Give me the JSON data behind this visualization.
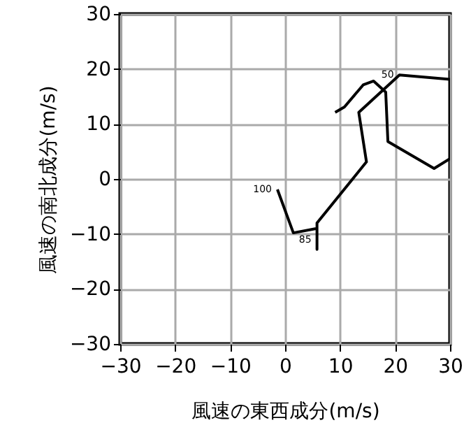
{
  "chart_data": {
    "type": "line",
    "xlabel": "風速の東西成分(m/s)",
    "ylabel": "風速の南北成分(m/s)",
    "series": [
      {
        "color": "#000000",
        "x": [
          -1.4,
          1.5,
          5.8,
          5.8,
          5.8,
          14.8,
          13.4,
          20.8,
          30,
          30,
          27.1,
          18.7,
          18.3,
          16.1,
          14.2,
          10.8,
          9.1
        ],
        "values": [
          -1.9,
          -9.8,
          -9.0,
          -12.8,
          -8.0,
          3.1,
          12.1,
          18.9,
          18.1,
          3.7,
          1.9,
          6.8,
          15.8,
          17.8,
          17.1,
          13.1,
          12.1
        ]
      }
    ],
    "annotations": [
      {
        "text": "100",
        "x": -1.4,
        "y": -1.9
      },
      {
        "text": "85",
        "x": 5.8,
        "y": -11.0
      },
      {
        "text": "50",
        "x": 20.8,
        "y": 18.9
      }
    ],
    "xlim": [
      -30,
      30
    ],
    "ylim": [
      -30,
      30
    ],
    "xticks": [
      -30,
      -20,
      -10,
      0,
      10,
      20,
      30
    ],
    "yticks": [
      -30,
      -20,
      -10,
      0,
      10,
      20,
      30
    ],
    "grid": true,
    "marker": "none",
    "line_style": "solid"
  }
}
